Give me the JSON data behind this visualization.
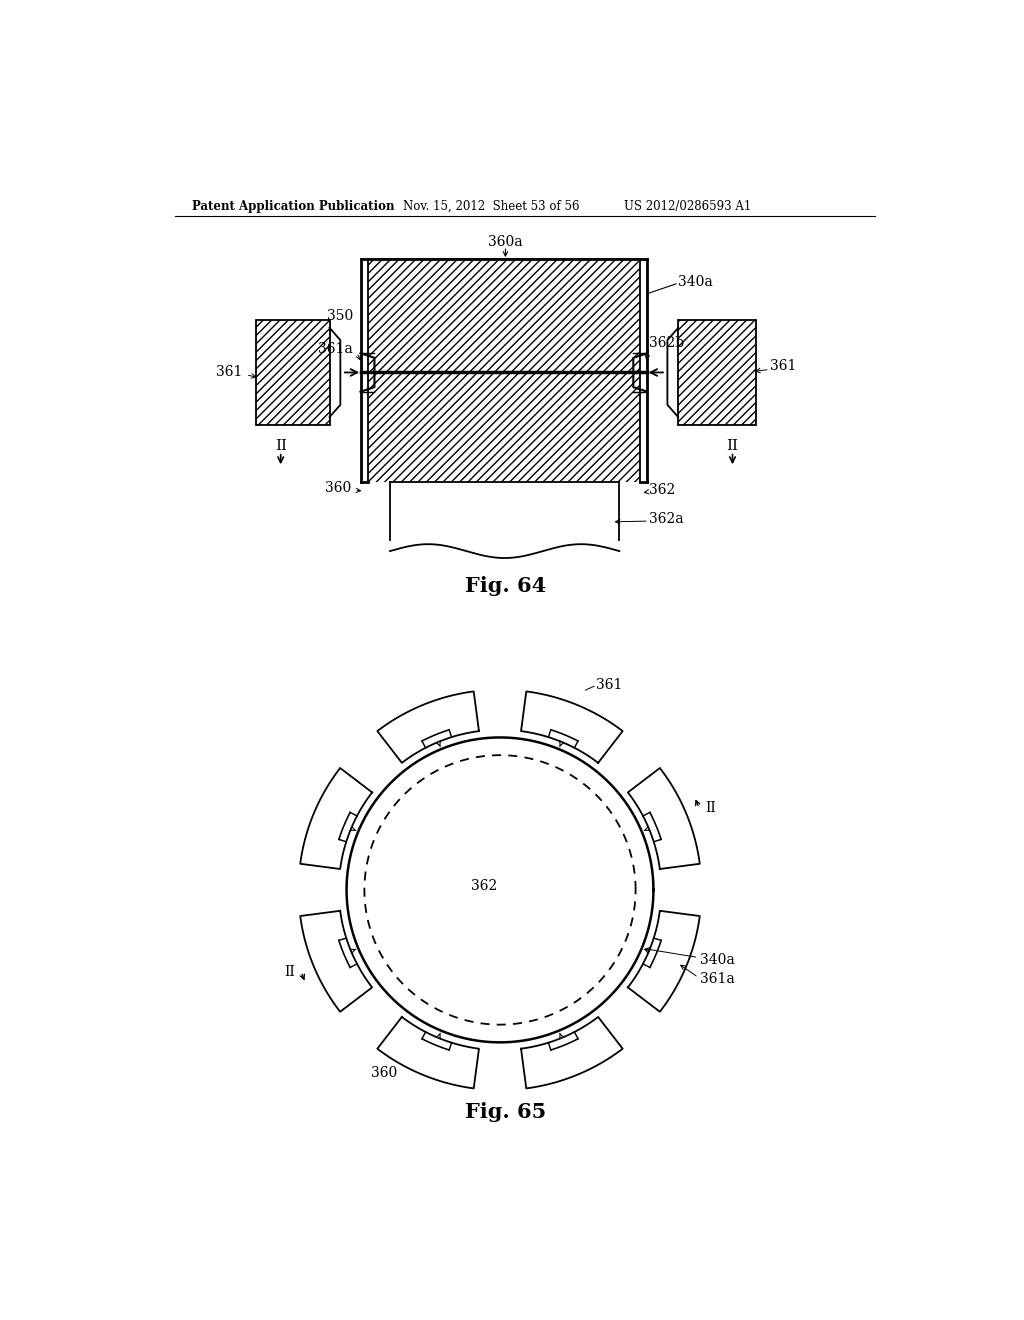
{
  "bg_color": "#ffffff",
  "header_text": "Patent Application Publication",
  "header_date": "Nov. 15, 2012  Sheet 53 of 56",
  "header_patent": "US 2012/0286593 A1",
  "fig64_caption": "Fig. 64",
  "fig65_caption": "Fig. 65",
  "line_color": "#000000"
}
